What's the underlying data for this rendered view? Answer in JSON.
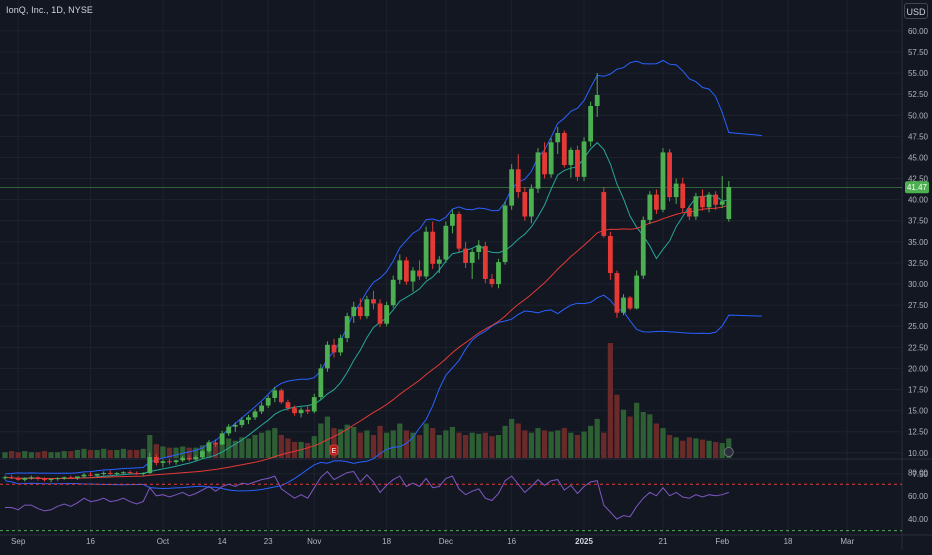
{
  "header": {
    "title": "IonQ, Inc., 1D, NYSE",
    "currency": "USD"
  },
  "colors": {
    "background": "#131722",
    "up": "#4caf50",
    "down": "#e53935",
    "volume_up": "#2e5e33",
    "volume_down": "#6b2a2a",
    "bb_band": "#2962ff",
    "ma_fast": "#26a69a",
    "ma_slow": "#e53935",
    "rsi_line": "#7e57c2",
    "rsi_bound": "#e53935",
    "last_price_line": "#4caf50"
  },
  "chart_data": {
    "type": "candlestick",
    "price_axis": {
      "ticks": [
        60.0,
        57.5,
        55.0,
        52.5,
        50.0,
        47.5,
        45.0,
        42.5,
        40.0,
        37.5,
        35.0,
        32.5,
        30.0,
        27.5,
        25.0,
        22.5,
        20.0,
        17.5,
        15.0,
        12.5,
        10.0,
        7.5
      ],
      "tick_labels": [
        "60.00",
        "57.50",
        "55.00",
        "52.50",
        "50.00",
        "47.50",
        "45.00",
        "42.50",
        "40.00",
        "37.50",
        "35.00",
        "32.50",
        "30.00",
        "27.50",
        "25.00",
        "22.50",
        "20.00",
        "17.50",
        "15.00",
        "12.50",
        "10.00",
        "7.50"
      ],
      "range": [
        5.0,
        62.0
      ]
    },
    "last_price": 41.47,
    "last_price_label": "41.47",
    "time_axis": {
      "ticks": [
        {
          "label": "Sep",
          "bar": 2
        },
        {
          "label": "16",
          "bar": 13
        },
        {
          "label": "Oct",
          "bar": 24
        },
        {
          "label": "14",
          "bar": 33
        },
        {
          "label": "23",
          "bar": 40
        },
        {
          "label": "Nov",
          "bar": 47
        },
        {
          "label": "18",
          "bar": 58
        },
        {
          "label": "Dec",
          "bar": 67
        },
        {
          "label": "16",
          "bar": 77
        },
        {
          "label": "2025",
          "bar": 88
        },
        {
          "label": "21",
          "bar": 100
        },
        {
          "label": "Feb",
          "bar": 109
        },
        {
          "label": "18",
          "bar": 119
        },
        {
          "label": "Mar",
          "bar": 128
        }
      ]
    },
    "candles": [
      [
        7.0,
        7.3,
        6.8,
        7.1
      ],
      [
        7.1,
        7.4,
        6.9,
        7.0
      ],
      [
        7.0,
        7.2,
        6.7,
        6.8
      ],
      [
        6.8,
        7.1,
        6.6,
        7.0
      ],
      [
        7.0,
        7.3,
        6.8,
        7.1
      ],
      [
        7.1,
        7.2,
        6.7,
        6.9
      ],
      [
        6.9,
        7.1,
        6.6,
        6.8
      ],
      [
        6.8,
        7.0,
        6.5,
        6.9
      ],
      [
        6.9,
        7.1,
        6.7,
        7.0
      ],
      [
        7.0,
        7.2,
        6.8,
        7.1
      ],
      [
        7.1,
        7.3,
        6.9,
        7.0
      ],
      [
        7.0,
        7.2,
        6.8,
        7.2
      ],
      [
        7.2,
        7.6,
        7.0,
        7.4
      ],
      [
        7.4,
        7.7,
        7.2,
        7.3
      ],
      [
        7.3,
        7.5,
        7.1,
        7.5
      ],
      [
        7.5,
        7.8,
        7.3,
        7.6
      ],
      [
        7.6,
        7.9,
        7.4,
        7.5
      ],
      [
        7.5,
        7.7,
        7.3,
        7.6
      ],
      [
        7.6,
        7.8,
        7.4,
        7.7
      ],
      [
        7.7,
        7.9,
        7.5,
        7.6
      ],
      [
        7.6,
        7.8,
        7.4,
        7.5
      ],
      [
        7.5,
        7.7,
        7.3,
        7.6
      ],
      [
        7.6,
        10.0,
        7.5,
        9.5
      ],
      [
        9.5,
        9.8,
        8.5,
        8.8
      ],
      [
        8.8,
        9.2,
        8.3,
        9.0
      ],
      [
        9.0,
        9.3,
        8.6,
        8.9
      ],
      [
        8.9,
        9.2,
        8.6,
        9.1
      ],
      [
        9.1,
        9.6,
        8.9,
        9.4
      ],
      [
        9.4,
        9.7,
        9.0,
        9.2
      ],
      [
        9.2,
        9.7,
        9.0,
        9.5
      ],
      [
        9.5,
        10.4,
        9.3,
        10.2
      ],
      [
        10.2,
        11.5,
        10.0,
        11.2
      ],
      [
        11.2,
        11.6,
        10.7,
        11.0
      ],
      [
        11.0,
        12.6,
        10.9,
        12.3
      ],
      [
        12.3,
        13.4,
        12.0,
        13.1
      ],
      [
        13.1,
        13.6,
        12.5,
        13.3
      ],
      [
        13.3,
        14.2,
        13.0,
        13.9
      ],
      [
        13.9,
        14.5,
        13.4,
        14.2
      ],
      [
        14.2,
        15.2,
        13.9,
        14.9
      ],
      [
        14.9,
        16.0,
        14.6,
        15.6
      ],
      [
        15.6,
        16.8,
        15.3,
        16.5
      ],
      [
        16.5,
        17.8,
        16.0,
        17.4
      ],
      [
        17.4,
        17.6,
        15.8,
        16.0
      ],
      [
        16.0,
        16.3,
        15.0,
        15.3
      ],
      [
        15.3,
        15.6,
        14.4,
        14.7
      ],
      [
        14.7,
        15.4,
        14.2,
        15.1
      ],
      [
        15.1,
        15.6,
        14.6,
        14.9
      ],
      [
        14.9,
        17.0,
        14.7,
        16.6
      ],
      [
        16.6,
        20.5,
        16.3,
        20.0
      ],
      [
        20.0,
        23.2,
        19.6,
        22.8
      ],
      [
        22.8,
        23.5,
        21.3,
        21.9
      ],
      [
        21.9,
        24.0,
        21.5,
        23.6
      ],
      [
        23.6,
        26.6,
        23.1,
        26.2
      ],
      [
        26.2,
        27.9,
        25.4,
        27.3
      ],
      [
        27.3,
        28.3,
        25.8,
        26.2
      ],
      [
        26.2,
        28.6,
        25.9,
        28.2
      ],
      [
        28.2,
        29.2,
        27.0,
        27.7
      ],
      [
        27.7,
        28.2,
        24.9,
        25.3
      ],
      [
        25.3,
        27.9,
        25.0,
        27.5
      ],
      [
        27.5,
        31.0,
        27.2,
        30.5
      ],
      [
        30.5,
        33.5,
        30.0,
        32.8
      ],
      [
        32.8,
        33.2,
        29.9,
        30.3
      ],
      [
        30.3,
        32.0,
        29.1,
        31.6
      ],
      [
        31.6,
        32.8,
        30.5,
        30.9
      ],
      [
        30.9,
        36.8,
        30.6,
        36.2
      ],
      [
        36.2,
        37.4,
        31.8,
        32.4
      ],
      [
        32.4,
        33.3,
        31.3,
        32.9
      ],
      [
        32.9,
        37.4,
        32.5,
        36.9
      ],
      [
        36.9,
        38.8,
        36.0,
        38.3
      ],
      [
        38.3,
        38.6,
        33.8,
        34.2
      ],
      [
        34.2,
        35.0,
        31.9,
        32.5
      ],
      [
        32.5,
        34.2,
        30.6,
        33.8
      ],
      [
        33.8,
        35.2,
        32.9,
        34.5
      ],
      [
        34.5,
        35.0,
        30.1,
        30.6
      ],
      [
        30.6,
        31.2,
        29.6,
        30.0
      ],
      [
        30.0,
        33.0,
        29.5,
        32.6
      ],
      [
        32.6,
        39.8,
        32.3,
        39.3
      ],
      [
        39.3,
        44.2,
        38.8,
        43.6
      ],
      [
        43.6,
        45.4,
        40.2,
        40.9
      ],
      [
        40.9,
        41.5,
        37.5,
        38.0
      ],
      [
        38.0,
        41.8,
        37.2,
        41.3
      ],
      [
        41.3,
        46.1,
        40.8,
        45.6
      ],
      [
        45.6,
        46.8,
        42.5,
        43.0
      ],
      [
        43.0,
        47.3,
        42.6,
        46.8
      ],
      [
        46.8,
        48.6,
        45.4,
        47.9
      ],
      [
        47.9,
        48.2,
        43.8,
        44.1
      ],
      [
        44.1,
        46.2,
        42.6,
        45.9
      ],
      [
        45.9,
        46.4,
        42.2,
        42.7
      ],
      [
        42.7,
        47.4,
        42.2,
        46.9
      ],
      [
        46.9,
        51.6,
        46.3,
        51.1
      ],
      [
        51.1,
        55.0,
        49.8,
        52.4
      ],
      [
        40.9,
        41.5,
        35.5,
        35.7
      ],
      [
        35.7,
        36.2,
        30.5,
        31.3
      ],
      [
        31.3,
        31.6,
        26.0,
        26.6
      ],
      [
        26.6,
        28.8,
        26.3,
        28.4
      ],
      [
        28.4,
        28.6,
        26.9,
        27.1
      ],
      [
        27.1,
        31.6,
        27.0,
        31.0
      ],
      [
        31.0,
        38.0,
        30.6,
        37.6
      ],
      [
        37.6,
        41.0,
        37.1,
        40.6
      ],
      [
        40.6,
        41.2,
        38.3,
        38.8
      ],
      [
        38.8,
        46.1,
        38.5,
        45.6
      ],
      [
        45.6,
        46.0,
        39.8,
        40.3
      ],
      [
        40.3,
        42.5,
        39.5,
        41.9
      ],
      [
        41.9,
        42.6,
        38.5,
        39.0
      ],
      [
        39.0,
        39.3,
        37.6,
        38.0
      ],
      [
        38.0,
        40.8,
        37.6,
        40.4
      ],
      [
        40.4,
        41.2,
        38.7,
        39.1
      ],
      [
        39.1,
        40.9,
        38.5,
        40.6
      ],
      [
        40.6,
        41.0,
        38.8,
        39.4
      ],
      [
        39.4,
        42.8,
        39.0,
        39.8
      ],
      [
        37.7,
        42.2,
        37.4,
        41.47
      ]
    ],
    "volume_relative": [
      0.05,
      0.06,
      0.05,
      0.06,
      0.05,
      0.05,
      0.06,
      0.05,
      0.05,
      0.06,
      0.06,
      0.07,
      0.08,
      0.07,
      0.07,
      0.08,
      0.07,
      0.07,
      0.08,
      0.07,
      0.07,
      0.08,
      0.2,
      0.12,
      0.1,
      0.09,
      0.09,
      0.1,
      0.09,
      0.09,
      0.11,
      0.14,
      0.12,
      0.15,
      0.17,
      0.15,
      0.18,
      0.17,
      0.2,
      0.22,
      0.24,
      0.26,
      0.2,
      0.17,
      0.14,
      0.14,
      0.13,
      0.19,
      0.3,
      0.36,
      0.26,
      0.25,
      0.29,
      0.27,
      0.22,
      0.24,
      0.2,
      0.28,
      0.22,
      0.24,
      0.3,
      0.24,
      0.22,
      0.2,
      0.3,
      0.26,
      0.2,
      0.24,
      0.27,
      0.22,
      0.2,
      0.22,
      0.21,
      0.22,
      0.19,
      0.2,
      0.28,
      0.34,
      0.3,
      0.24,
      0.22,
      0.26,
      0.24,
      0.23,
      0.24,
      0.26,
      0.22,
      0.2,
      0.23,
      0.28,
      0.34,
      0.22,
      1.0,
      0.55,
      0.42,
      0.36,
      0.48,
      0.4,
      0.38,
      0.3,
      0.26,
      0.2,
      0.18,
      0.15,
      0.18,
      0.17,
      0.16,
      0.15,
      0.14,
      0.13,
      0.17,
      0.15
    ],
    "volume_labels": [
      {
        "bar": 50,
        "text": "E"
      }
    ],
    "rsi": {
      "ticks": [
        80.0,
        60.0,
        40.0
      ],
      "tick_labels": [
        "80.00",
        "60.00",
        "40.00"
      ],
      "upper": 70,
      "lower": 30,
      "range": [
        28,
        90
      ],
      "values": [
        50,
        50,
        48,
        52,
        52,
        49,
        47,
        48,
        51,
        53,
        51,
        54,
        58,
        55,
        56,
        58,
        55,
        56,
        58,
        55,
        53,
        55,
        67,
        60,
        61,
        59,
        61,
        63,
        60,
        62,
        65,
        68,
        64,
        68,
        70,
        68,
        71,
        70,
        72,
        74,
        75,
        77,
        66,
        62,
        58,
        61,
        58,
        67,
        76,
        81,
        74,
        77,
        80,
        81,
        72,
        78,
        72,
        63,
        69,
        74,
        77,
        68,
        71,
        68,
        75,
        67,
        68,
        75,
        77,
        66,
        61,
        64,
        66,
        58,
        56,
        62,
        73,
        77,
        70,
        63,
        68,
        74,
        69,
        73,
        74,
        65,
        69,
        62,
        68,
        72,
        73,
        52,
        46,
        40,
        43,
        42,
        51,
        58,
        63,
        60,
        67,
        60,
        63,
        59,
        58,
        61,
        59,
        61,
        60,
        61,
        63
      ]
    }
  }
}
